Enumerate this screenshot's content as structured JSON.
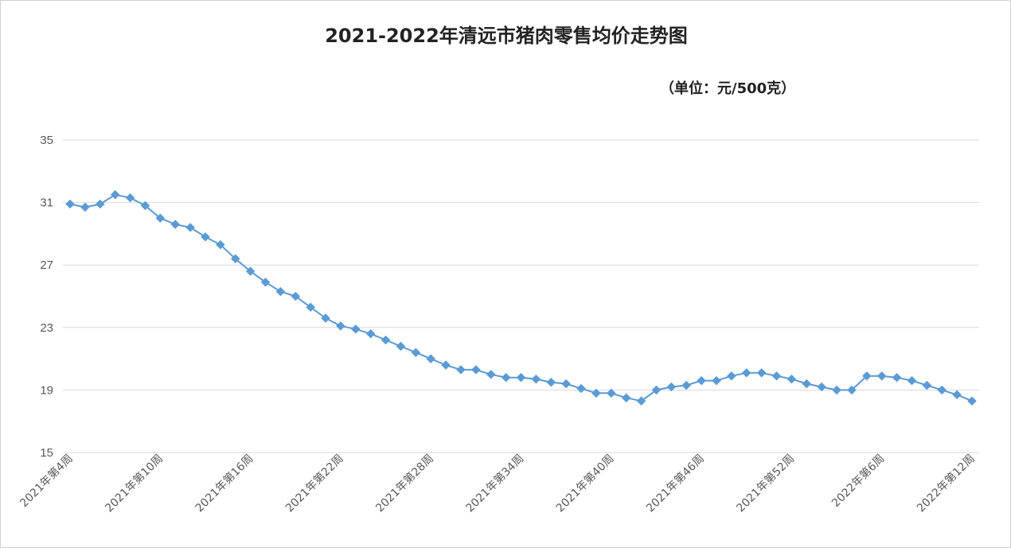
{
  "chart_data": {
    "type": "line",
    "title": "2021-2022年清远市猪肉零售均价走势图",
    "subtitle": "（单位：元/500克）",
    "xlabel": "",
    "ylabel": "",
    "ylim": [
      15,
      35
    ],
    "yticks": [
      15,
      19,
      23,
      27,
      31,
      35
    ],
    "grid": true,
    "x_tick_labels": [
      "2021年第4周",
      "2021年第10周",
      "2021年第16周",
      "2021年第22周",
      "2021年第28周",
      "2021年第34周",
      "2021年第40周",
      "2021年第46周",
      "2021年第52周",
      "2022年第6周",
      "2022年第12周"
    ],
    "series": [
      {
        "name": "",
        "color": "#5b9bd5",
        "values": [
          30.9,
          30.7,
          30.9,
          31.5,
          31.3,
          30.8,
          30.0,
          29.6,
          29.4,
          28.8,
          28.3,
          27.4,
          26.6,
          25.9,
          25.3,
          25.0,
          24.3,
          23.6,
          23.1,
          22.9,
          22.6,
          22.2,
          21.8,
          21.4,
          21.0,
          20.6,
          20.3,
          20.3,
          20.0,
          19.8,
          19.8,
          19.7,
          19.5,
          19.4,
          19.1,
          18.8,
          18.8,
          18.5,
          18.3,
          19.0,
          19.2,
          19.3,
          19.6,
          19.6,
          19.9,
          20.1,
          20.1,
          19.9,
          19.7,
          19.4,
          19.2,
          19.0,
          19.0,
          19.9,
          19.9,
          19.8,
          19.6,
          19.3,
          19.0,
          18.7,
          18.3
        ]
      }
    ]
  }
}
